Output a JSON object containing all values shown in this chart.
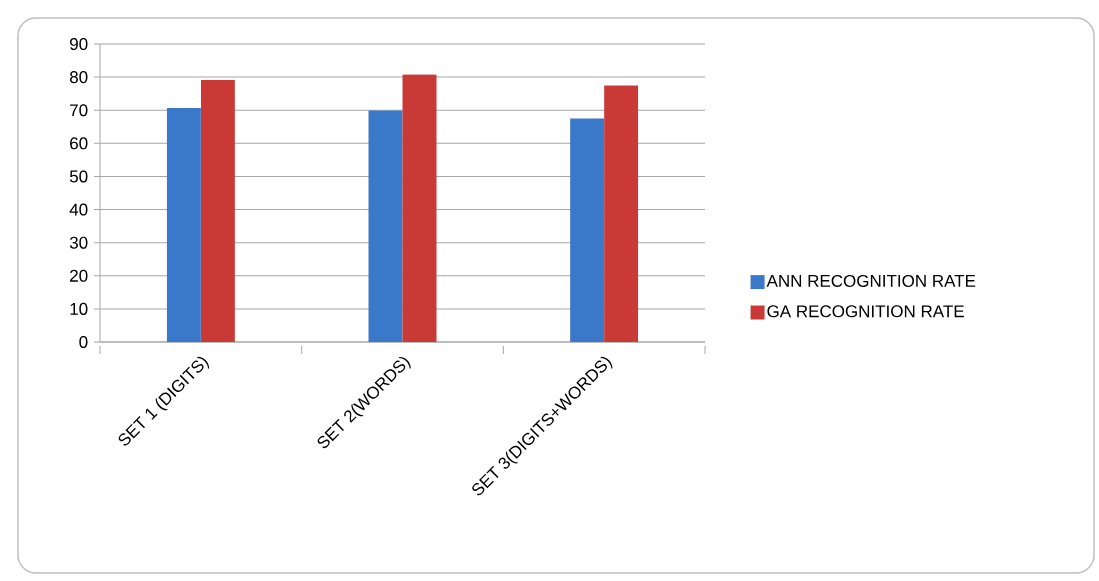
{
  "chart_data": {
    "type": "bar",
    "categories": [
      "SET 1 (DIGITS)",
      "SET 2(WORDS)",
      "SET 3(DIGITS+WORDS)"
    ],
    "series": [
      {
        "name": "ANN RECOGNITION  RATE",
        "color": "#3a78c9",
        "values": [
          70.7,
          69.9,
          67.5
        ]
      },
      {
        "name": "GA RECOGNITION  RATE",
        "color": "#c93a36",
        "values": [
          79.1,
          80.8,
          77.5
        ]
      }
    ],
    "ylim": [
      0,
      90
    ],
    "yticks": [
      0,
      10,
      20,
      30,
      40,
      50,
      60,
      70,
      80,
      90
    ],
    "grid": "y",
    "legend": "right"
  }
}
